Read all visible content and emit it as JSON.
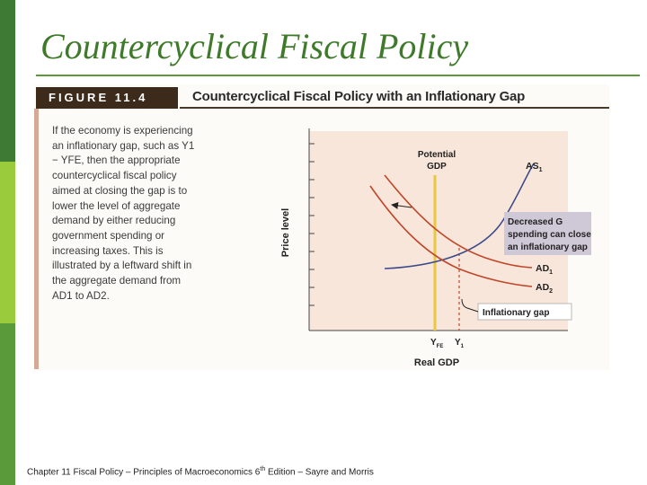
{
  "slide_title": "Countercyclical Fiscal Policy",
  "figure": {
    "label": "FIGURE 11.4",
    "title": "Countercyclical Fiscal Policy with an Inflationary Gap",
    "caption": "If the economy is experiencing an inflationary gap, such as Y1 − YFE, then the appropriate countercyclical fiscal policy aimed at closing the gap is to lower the level of aggregate demand by either reducing government spending or increasing taxes. This is illustrated by a leftward shift in the aggregate demand from AD1 to AD2."
  },
  "diagram": {
    "ylabel": "Price level",
    "xlabel": "Real GDP",
    "potential_label_1": "Potential",
    "potential_label_2": "GDP",
    "as_label": "AS",
    "as_sub": "1",
    "ad1_label": "AD",
    "ad1_sub": "1",
    "ad2_label": "AD",
    "ad2_sub": "2",
    "callout_lines": [
      "Decreased G",
      "spending can close",
      "an inflationary gap"
    ],
    "gap_label": "Inflationary gap",
    "yfe_label": "Y",
    "yfe_sub": "FE",
    "y1_label": "Y",
    "y1_sub": "1",
    "colors": {
      "as_curve": "#3a4a8a",
      "ad_curves": "#c0462a",
      "potential_line": "#e8c840",
      "plot_bg": "#f8e6da",
      "callout_bg": "#cfc8d6"
    }
  },
  "footer": {
    "text_before": "Chapter 11 Fiscal Policy – Principles of Macroeconomics 6",
    "sup": "th",
    "text_after": " Edition – Sayre and Morris"
  }
}
